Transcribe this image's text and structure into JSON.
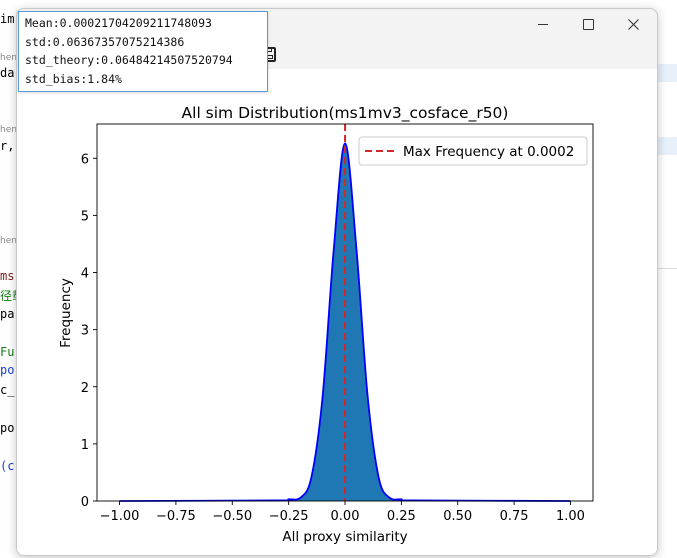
{
  "background_editor": {
    "lines": [
      {
        "text": "im",
        "color": "#000000"
      },
      {
        "text": "hen",
        "color": "#8a8a8a"
      },
      {
        "text": "da",
        "color": "#000000"
      },
      {
        "text": "hen",
        "color": "#8a8a8a"
      },
      {
        "text": "r,",
        "color": "#000000"
      },
      {
        "text": "hen",
        "color": "#8a8a8a"
      },
      {
        "text": "ms",
        "color": "#7a1c1c"
      },
      {
        "text": "径载",
        "color": "#1a7a1a"
      },
      {
        "text": "pa",
        "color": "#000000"
      },
      {
        "text": "Fu",
        "color": "#1a7a1a"
      },
      {
        "text": "po",
        "color": "#1a3fd0"
      },
      {
        "text": "c_",
        "color": "#000000"
      },
      {
        "text": "po",
        "color": "#000000"
      },
      {
        "text": "(c",
        "color": "#1a3fd0"
      }
    ]
  },
  "window": {
    "minimize_icon": "minimize-icon",
    "maximize_icon": "maximize-icon",
    "close_icon": "close-icon",
    "save_icon": "save-icon"
  },
  "tooltip": {
    "lines": [
      "Mean:0.00021704209211748093",
      "std:0.06367357075214386",
      "std_theory:0.06484214507520794",
      "std_bias:1.84%"
    ]
  },
  "chart_data": {
    "type": "area",
    "title": "All sim Distribution(ms1mv3_cosface_r50)",
    "xlabel": "All proxy similarity",
    "ylabel": "Frequency",
    "xlim": [
      -1.1,
      1.1
    ],
    "ylim": [
      0,
      6.6
    ],
    "xticks": [
      "−1.00",
      "−0.75",
      "−0.50",
      "−0.25",
      "0.00",
      "0.25",
      "0.50",
      "0.75",
      "1.00"
    ],
    "xtick_values": [
      -1.0,
      -0.75,
      -0.5,
      -0.25,
      0.0,
      0.25,
      0.5,
      0.75,
      1.0
    ],
    "yticks": [
      "0",
      "1",
      "2",
      "3",
      "4",
      "5",
      "6"
    ],
    "ytick_values": [
      0,
      1,
      2,
      3,
      4,
      5,
      6
    ],
    "series": [
      {
        "name": "",
        "kind": "density",
        "x": [
          -1.0,
          -0.3,
          -0.25,
          -0.2,
          -0.15,
          -0.1,
          -0.05,
          0.0,
          0.05,
          0.1,
          0.15,
          0.2,
          0.25,
          0.3,
          1.0
        ],
        "y": [
          0.0,
          0.01,
          0.03,
          0.05,
          0.4,
          1.8,
          4.4,
          6.26,
          4.45,
          1.85,
          0.4,
          0.05,
          0.03,
          0.01,
          0.0
        ],
        "line_color": "#0000ff",
        "fill_color": "#1f77b4"
      }
    ],
    "vline": {
      "x": 0.0002,
      "label": "Max Frequency at 0.0002",
      "color": "#d62728"
    },
    "legend": "top-right",
    "grid": false
  }
}
